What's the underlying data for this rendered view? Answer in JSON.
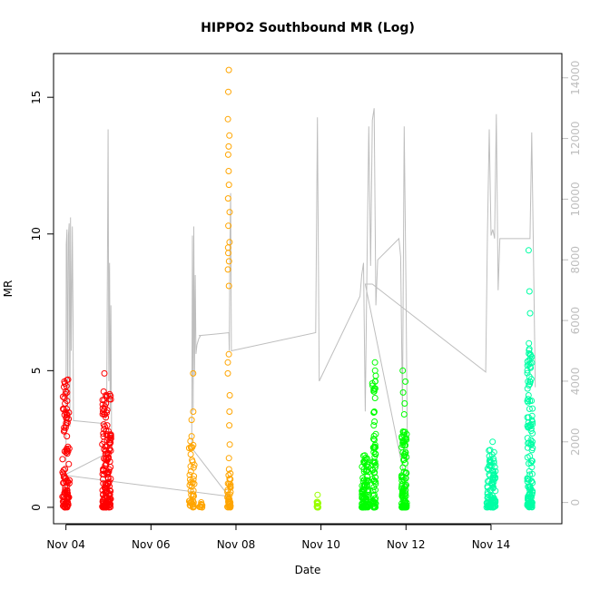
{
  "chart_data": {
    "type": "scatter",
    "title": "HIPPO2 Southbound MR (Log)",
    "xlabel": "Date",
    "ylabel": "MR",
    "x_ticks": [
      "Nov 04",
      "Nov 06",
      "Nov 08",
      "Nov 10",
      "Nov 12",
      "Nov 14"
    ],
    "y_ticks": [
      0,
      5,
      10,
      15
    ],
    "y2_ticks": [
      0,
      2000,
      4000,
      6000,
      8000,
      10000,
      12000,
      14000
    ],
    "xlim": [
      "Nov 03 17:00",
      "Nov 15 16:00"
    ],
    "ylim": [
      -0.6,
      16.6
    ],
    "y2lim": [
      -700,
      14800
    ],
    "grid": false,
    "legend": "none",
    "colors": {
      "red": "#ff0000",
      "orange": "#ffa500",
      "yellowgreen": "#9aff00",
      "green": "#00ff00",
      "aqua": "#00ffa5",
      "altitude": "#bebebe"
    },
    "point_groups": [
      {
        "color": "red",
        "x": "Nov 04 00:00",
        "x_spread_h": 4,
        "y_min": 0,
        "y_max": 4.7,
        "n": 90,
        "outliers": [
          0.1,
          0.3,
          0.5,
          0.9,
          1.4,
          2.0,
          2.6,
          3.0,
          3.3,
          3.6,
          3.8,
          4.0,
          4.2,
          4.4,
          4.6
        ]
      },
      {
        "color": "red",
        "x": "Nov 04 23:00",
        "x_spread_h": 5,
        "y_min": 0,
        "y_max": 4.3,
        "n": 150,
        "outliers": [
          0.2,
          0.6,
          1.2,
          1.8,
          2.4,
          3.0,
          3.4,
          3.8,
          4.1,
          4.9
        ]
      },
      {
        "color": "orange",
        "x": "Nov 06 23:00",
        "x_spread_h": 3,
        "y_min": 0,
        "y_max": 2.8,
        "n": 40,
        "outliers": [
          0.1,
          0.4,
          0.9,
          1.5,
          2.2,
          2.6,
          3.2,
          3.5,
          4.9
        ]
      },
      {
        "color": "orange",
        "x": "Nov 07 04:00",
        "x_spread_h": 2,
        "y_min": 0,
        "y_max": 0.2,
        "n": 10,
        "outliers": []
      },
      {
        "color": "orange",
        "x": "Nov 07 20:00",
        "x_spread_h": 2,
        "y_min": 0,
        "y_max": 1.5,
        "n": 40,
        "outliers": [
          1.8,
          2.3,
          3.0,
          3.5,
          4.1,
          4.9,
          5.3,
          5.6,
          8.1,
          8.7,
          9.0,
          9.3,
          9.5,
          9.7,
          10.3,
          10.8,
          11.3,
          11.8,
          12.3,
          12.9,
          13.2,
          13.6,
          14.2,
          15.2,
          16.0
        ]
      },
      {
        "color": "yellowgreen",
        "x": "Nov 09 22:00",
        "x_spread_h": 1,
        "y_min": 0,
        "y_max": 0.6,
        "n": 14,
        "outliers": []
      },
      {
        "color": "green",
        "x": "Nov 11 01:00",
        "x_spread_h": 4,
        "y_min": 0,
        "y_max": 1.9,
        "n": 90,
        "outliers": [
          0.2,
          0.8,
          1.4,
          1.9
        ]
      },
      {
        "color": "green",
        "x": "Nov 11 06:00",
        "x_spread_h": 2,
        "y_min": 0,
        "y_max": 5.3,
        "n": 70,
        "outliers": [
          2.5,
          3.0,
          3.5,
          4.0,
          4.3,
          4.6,
          5.0,
          5.3
        ]
      },
      {
        "color": "green",
        "x": "Nov 11 23:00",
        "x_spread_h": 3,
        "y_min": 0,
        "y_max": 3.0,
        "n": 100,
        "outliers": [
          3.4,
          3.8,
          4.2,
          4.6,
          5.0
        ]
      },
      {
        "color": "aqua",
        "x": "Nov 14 00:00",
        "x_spread_h": 5,
        "y_min": 0,
        "y_max": 2.1,
        "n": 100,
        "outliers": [
          0.3,
          0.9,
          1.5,
          2.1,
          2.4
        ]
      },
      {
        "color": "aqua",
        "x": "Nov 14 22:00",
        "x_spread_h": 3,
        "y_min": 0,
        "y_max": 6.0,
        "n": 130,
        "outliers": [
          3.1,
          3.6,
          4.1,
          4.6,
          5.1,
          5.6,
          6.0,
          7.1,
          7.9,
          9.4
        ]
      }
    ],
    "altitude_series": {
      "name": "altitude",
      "axis": "right",
      "x": [
        "Nov 04 00:00",
        "Nov 04 00:12",
        "Nov 04 00:36",
        "Nov 04 01:00",
        "Nov 04 01:24",
        "Nov 04 01:48",
        "Nov 04 02:12",
        "Nov 04 02:36",
        "Nov 04 03:00",
        "Nov 04 03:36",
        "Nov 04 04:00",
        "Nov 04 04:12",
        "Nov 04 22:00",
        "Nov 04 23:00",
        "Nov 04 23:24",
        "Nov 04 23:48",
        "Nov 05 00:12",
        "Nov 05 00:24",
        "Nov 05 00:36",
        "Nov 05 01:00",
        "Nov 05 01:24",
        "Nov 05 01:36",
        "Nov 05 01:48",
        "Nov 03 23:00",
        "Nov 07 20:00",
        "Nov 06 23:00",
        "Nov 06 23:24",
        "Nov 06 23:48",
        "Nov 07 00:12",
        "Nov 07 00:36",
        "Nov 07 01:00",
        "Nov 07 01:24",
        "Nov 07 02:00",
        "Nov 07 03:00",
        "Nov 07 04:00",
        "Nov 07 03:00",
        "Nov 07 12:00",
        "Nov 07 20:00",
        "Nov 07 20:12",
        "Nov 07 20:36",
        "Nov 07 21:00",
        "Nov 07 21:24",
        "Nov 09 21:00",
        "Nov 09 22:00",
        "Nov 09 23:00",
        "Nov 10 22:00",
        "Nov 10 23:00",
        "Nov 11 00:00",
        "Nov 11 01:00",
        "Nov 11 02:00",
        "Nov 11 03:00",
        "Nov 11 04:00",
        "Nov 11 05:00",
        "Nov 11 06:00",
        "Nov 11 07:00",
        "Nov 11 08:00",
        "Nov 11 20:00",
        "Nov 11 21:00",
        "Nov 11 22:00",
        "Nov 11 23:00",
        "Nov 12 00:00",
        "Nov 12 01:00",
        "Nov 11 01:00",
        "Nov 11 05:00",
        "Nov 13 21:00",
        "Nov 13 22:00",
        "Nov 13 23:00",
        "Nov 14 00:00",
        "Nov 14 01:00",
        "Nov 14 02:00",
        "Nov 14 03:00",
        "Nov 14 04:00",
        "Nov 14 05:00",
        "Nov 14 20:00",
        "Nov 14 21:00",
        "Nov 14 22:00",
        "Nov 14 23:00",
        "Nov 15 00:00",
        "Nov 15 01:00"
      ],
      "y": [
        100,
        8500,
        9000,
        3000,
        8800,
        9200,
        2500,
        9400,
        5000,
        9100,
        6000,
        2700,
        2600,
        3000,
        7500,
        12300,
        4000,
        7000,
        7900,
        3000,
        6500,
        4000,
        1700,
        900,
        200,
        1800,
        8800,
        3000,
        9100,
        4200,
        7500,
        4900,
        5200,
        5400,
        5500,
        5500,
        5550,
        5600,
        5000,
        8500,
        10200,
        5000,
        5600,
        12700,
        4000,
        6800,
        7500,
        7900,
        3000,
        8000,
        12400,
        7800,
        12600,
        13000,
        6500,
        8000,
        8700,
        8100,
        3000,
        12400,
        7000,
        300,
        7200,
        7200,
        4300,
        8800,
        12300,
        8800,
        9000,
        8700,
        12800,
        7000,
        8700,
        8700,
        8700,
        8700,
        12200,
        8000,
        3800
      ]
    }
  }
}
